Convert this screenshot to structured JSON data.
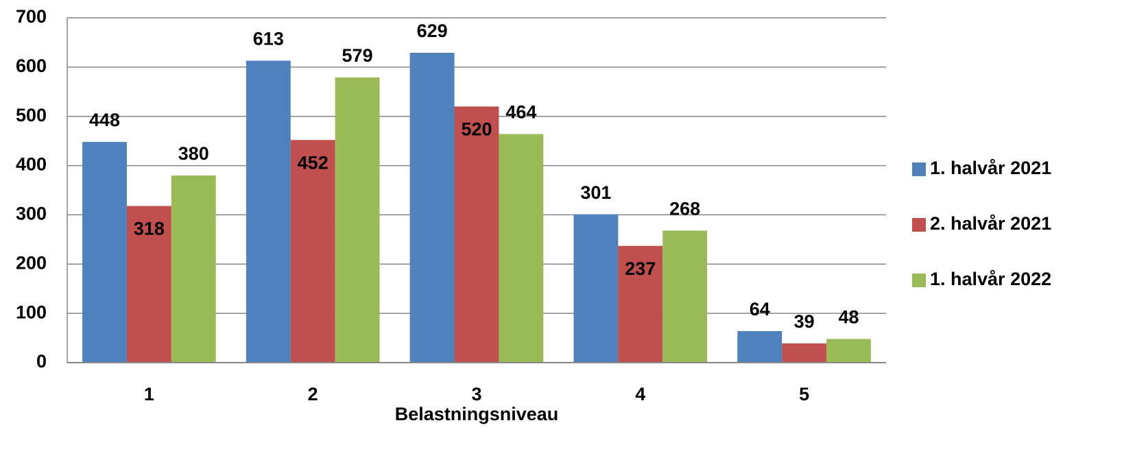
{
  "chart_data": {
    "type": "bar",
    "x_label": "Belastningsniveau",
    "categories": [
      "1",
      "2",
      "3",
      "4",
      "5"
    ],
    "series": [
      {
        "name": "1. halvår 2021",
        "color": "#4f81bd",
        "values": [
          448,
          613,
          629,
          301,
          64
        ]
      },
      {
        "name": "2. halvår 2021",
        "color": "#c0504d",
        "values": [
          318,
          452,
          520,
          237,
          39
        ]
      },
      {
        "name": "1. halvår 2022",
        "color": "#9bbb59",
        "values": [
          380,
          579,
          464,
          268,
          48
        ]
      }
    ],
    "ylim": [
      0,
      700
    ],
    "yticks": [
      0,
      100,
      200,
      300,
      400,
      500,
      600,
      700
    ],
    "grid": true,
    "legend": "right"
  }
}
